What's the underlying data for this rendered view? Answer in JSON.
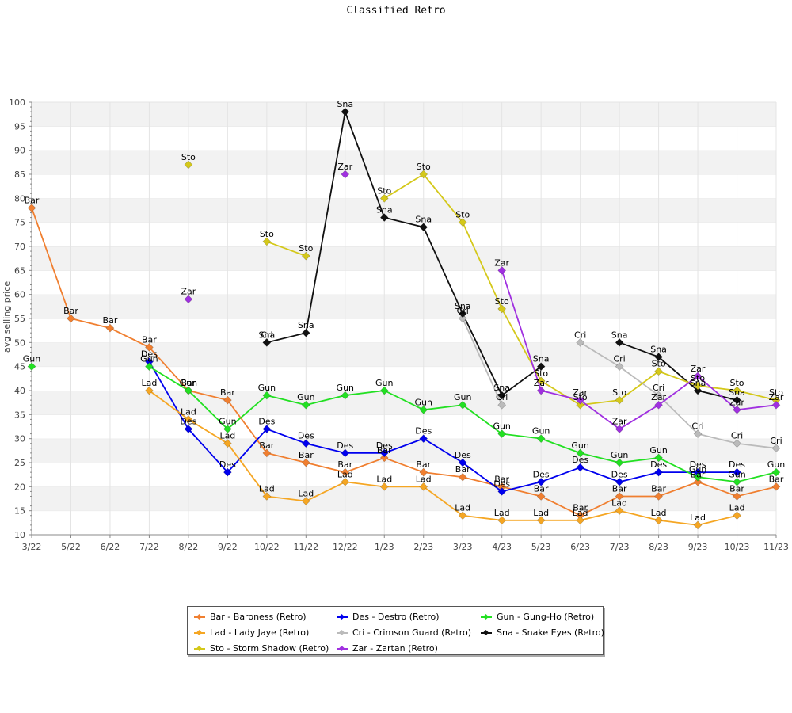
{
  "chart_data": {
    "type": "line",
    "title": "Classified Retro",
    "ylabel": "avg selling price",
    "xlabel": "",
    "ylim": [
      10,
      100
    ],
    "yticks": [
      10,
      15,
      20,
      25,
      30,
      35,
      40,
      45,
      50,
      55,
      60,
      65,
      70,
      75,
      80,
      85,
      90,
      95,
      100
    ],
    "grid": true,
    "legend_position": "bottom",
    "categories": [
      "3/22",
      "5/22",
      "6/22",
      "7/22",
      "8/22",
      "9/22",
      "10/22",
      "11/22",
      "12/22",
      "1/23",
      "2/23",
      "3/23",
      "4/23",
      "5/23",
      "6/23",
      "7/23",
      "8/23",
      "9/23",
      "10/23",
      "11/23"
    ],
    "series": [
      {
        "name": "Bar - Baroness (Retro)",
        "short": "Bar",
        "color": "#f07f30",
        "values": [
          78,
          55,
          53,
          49,
          40,
          38,
          27,
          25,
          23,
          26,
          23,
          22,
          20,
          18,
          14,
          18,
          18,
          21,
          18,
          20
        ]
      },
      {
        "name": "Des - Destro (Retro)",
        "short": "Des",
        "color": "#0000ee",
        "values": [
          null,
          null,
          null,
          46,
          32,
          23,
          32,
          29,
          27,
          27,
          30,
          25,
          19,
          21,
          24,
          21,
          23,
          23,
          23,
          null
        ]
      },
      {
        "name": "Gun - Gung-Ho (Retro)",
        "short": "Gun",
        "color": "#22e022",
        "values": [
          45,
          null,
          null,
          45,
          40,
          32,
          39,
          37,
          39,
          40,
          36,
          37,
          31,
          30,
          27,
          25,
          26,
          22,
          21,
          23
        ]
      },
      {
        "name": "Lad - Lady Jaye (Retro)",
        "short": "Lad",
        "color": "#f5a623",
        "values": [
          null,
          null,
          null,
          40,
          34,
          29,
          18,
          17,
          21,
          20,
          20,
          14,
          13,
          13,
          13,
          15,
          13,
          12,
          14,
          null
        ]
      },
      {
        "name": "Cri - Crimson Guard (Retro)",
        "short": "Cri",
        "color": "#bbbbbb",
        "values": [
          null,
          null,
          null,
          null,
          null,
          null,
          50,
          null,
          null,
          null,
          null,
          55,
          37,
          null,
          50,
          45,
          39,
          31,
          29,
          28
        ]
      },
      {
        "name": "Sna - Snake Eyes (Retro)",
        "short": "Sna",
        "color": "#111111",
        "values": [
          null,
          null,
          null,
          null,
          null,
          null,
          50,
          52,
          98,
          76,
          74,
          56,
          39,
          45,
          null,
          50,
          47,
          40,
          38,
          null
        ]
      },
      {
        "name": "Sto - Storm Shadow (Retro)",
        "short": "Sto",
        "color": "#d4c81a",
        "values": [
          null,
          null,
          null,
          null,
          87,
          null,
          71,
          68,
          null,
          80,
          85,
          75,
          57,
          42,
          37,
          38,
          44,
          41,
          40,
          38
        ]
      },
      {
        "name": "Zar - Zartan (Retro)",
        "short": "Zar",
        "color": "#a030e0",
        "values": [
          null,
          null,
          null,
          null,
          59,
          null,
          null,
          null,
          85,
          null,
          null,
          null,
          65,
          40,
          38,
          32,
          37,
          43,
          36,
          37
        ]
      }
    ],
    "legend_order": [
      0,
      3,
      6,
      1,
      4,
      7,
      2,
      5
    ]
  }
}
